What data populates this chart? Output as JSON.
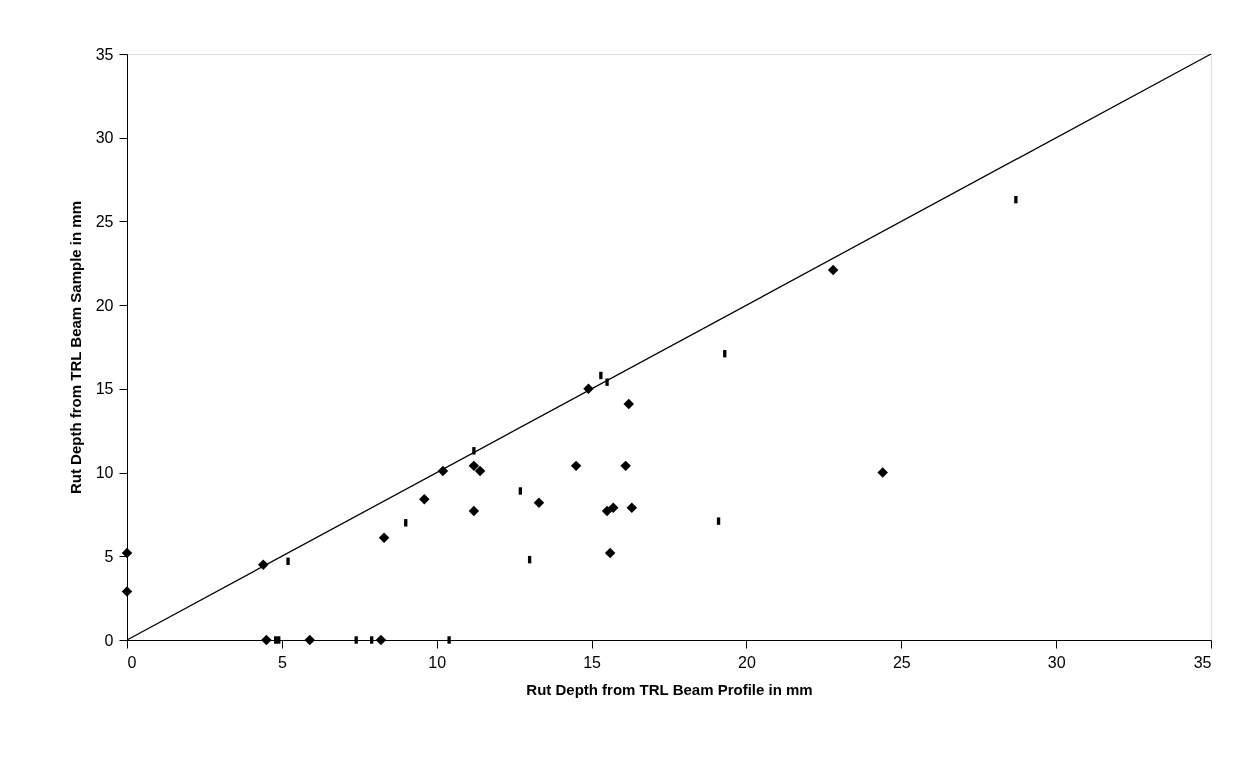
{
  "chart_data": {
    "type": "scatter",
    "xlabel": "Rut Depth from TRL Beam Profile in mm",
    "ylabel": "Rut Depth from TRL Beam Sample in mm",
    "xlim": [
      0,
      35
    ],
    "ylim": [
      0,
      35
    ],
    "xticks": [
      0,
      5,
      10,
      15,
      20,
      25,
      30,
      35
    ],
    "yticks": [
      0,
      5,
      10,
      15,
      20,
      25,
      30,
      35
    ],
    "grid": false,
    "series": [
      {
        "type": "line",
        "color": "#000000",
        "marker": "none",
        "x": [
          0,
          35
        ],
        "values": [
          0,
          35
        ]
      },
      {
        "color": "#000000",
        "marker": "diamond",
        "x": [
          0,
          0,
          4.4,
          8.3,
          9.6,
          10.2,
          11.2,
          11.4,
          11.2,
          13.3,
          14.9,
          16.2,
          14.5,
          16.1,
          15.5,
          15.7,
          16.3,
          15.6,
          22.8,
          24.4,
          4.5,
          5.9,
          8.2
        ],
        "values": [
          5.2,
          2.9,
          4.5,
          6.1,
          8.4,
          10.1,
          10.4,
          10.1,
          7.7,
          8.2,
          15.0,
          14.1,
          10.4,
          10.4,
          7.7,
          7.9,
          7.9,
          5.2,
          22.1,
          10.0,
          0,
          0,
          0
        ]
      },
      {
        "color": "#000000",
        "x": [
          5.2,
          9.0,
          11.2,
          12.7,
          13.0,
          15.3,
          15.5,
          19.3,
          19.1,
          28.7,
          4.8,
          4.9,
          7.4,
          7.9,
          10.4
        ],
        "values": [
          4.7,
          7.0,
          11.3,
          8.9,
          4.8,
          15.8,
          15.4,
          17.1,
          7.1,
          26.3,
          0,
          0,
          0,
          0,
          0
        ]
      }
    ]
  }
}
